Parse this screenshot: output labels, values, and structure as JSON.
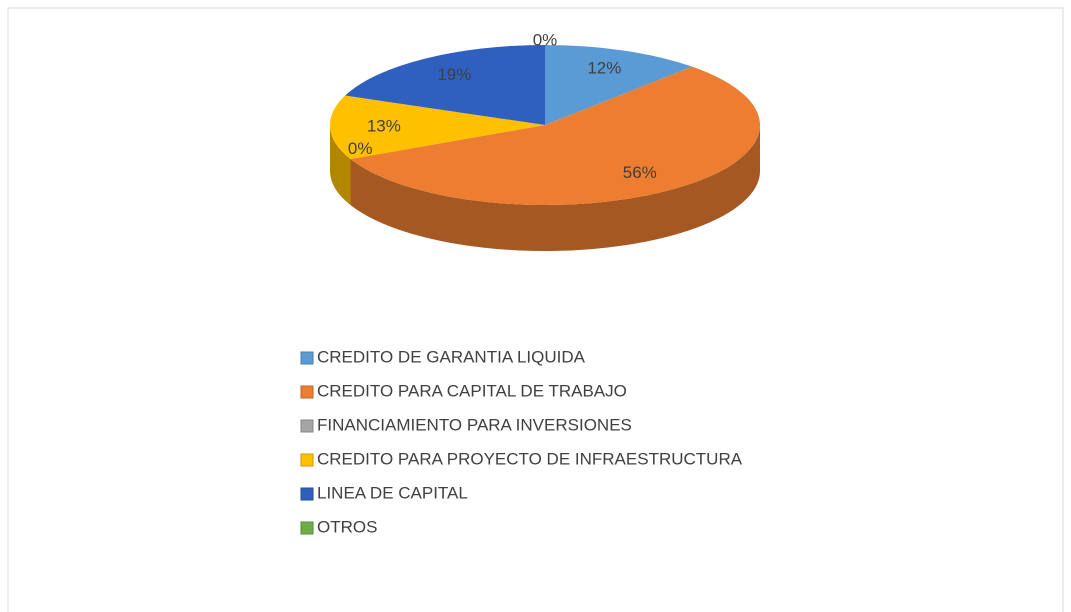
{
  "chart_data": {
    "type": "pie3d",
    "categories": [
      "CREDITO DE GARANTIA LIQUIDA",
      "CREDITO PARA CAPITAL DE TRABAJO",
      "FINANCIAMIENTO PARA INVERSIONES",
      "CREDITO PARA PROYECTO DE INFRAESTRUCTURA",
      "LINEA DE CAPITAL",
      "OTROS"
    ],
    "values": [
      12,
      56,
      0,
      13,
      19,
      0
    ],
    "value_labels": [
      "12%",
      "56%",
      "0%",
      "13%",
      "19%",
      "0%"
    ],
    "colors": [
      "#5b9bd5",
      "#ed7d31",
      "#a5a5a5",
      "#ffc000",
      "#2f5fbf",
      "#70ad47"
    ],
    "legend": "bottom"
  }
}
